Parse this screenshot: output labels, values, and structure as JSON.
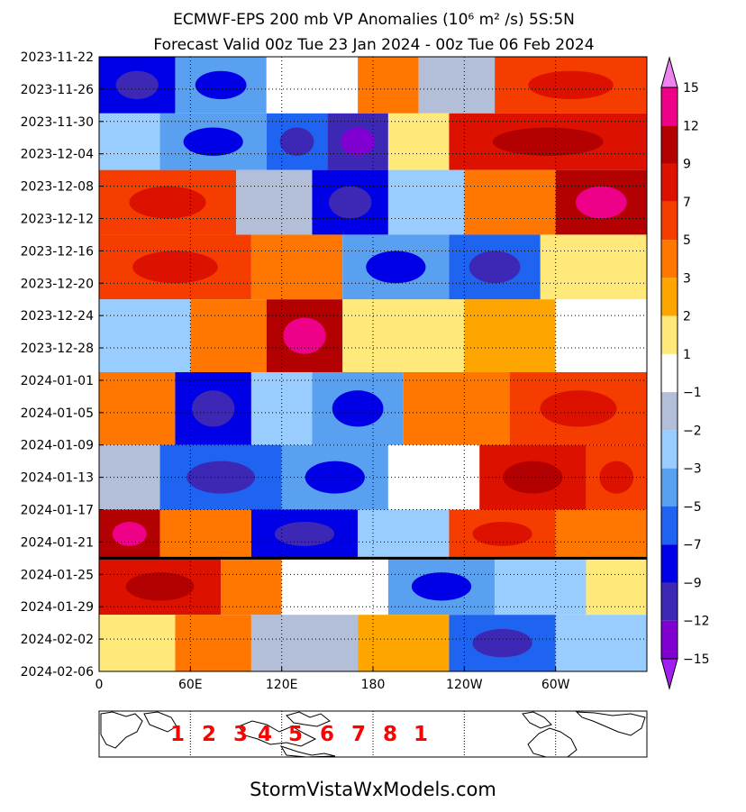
{
  "title_line1": "ECMWF-EPS 200 mb VP Anomalies (10⁶ m² /s) 5S:5N",
  "title_line2": "Forecast Valid 00z Tue 23 Jan 2024 - 00z Tue 06 Feb 2024",
  "footer": "StormVistaWxModels.com",
  "chart_data": {
    "type": "heatmap",
    "description_free": true,
    "x_axis": {
      "tick_labels": [
        "0",
        "60E",
        "120E",
        "180",
        "120W",
        "60W"
      ],
      "tick_lon": [
        0,
        60,
        120,
        180,
        240,
        300
      ],
      "range": [
        0,
        360
      ]
    },
    "y_axis": {
      "tick_labels": [
        "2023-11-22",
        "2023-11-26",
        "2023-11-30",
        "2023-12-04",
        "2023-12-08",
        "2023-12-12",
        "2023-12-16",
        "2023-12-20",
        "2023-12-24",
        "2023-12-28",
        "2024-01-01",
        "2024-01-05",
        "2024-01-09",
        "2024-01-13",
        "2024-01-17",
        "2024-01-21",
        "2024-01-25",
        "2024-01-29",
        "2024-02-02",
        "2024-02-06"
      ],
      "range": [
        "2023-11-22",
        "2024-02-06"
      ]
    },
    "forecast_start_line": "2024-01-23",
    "colorbar": {
      "labels": [
        "15",
        "12",
        "9",
        "7",
        "5",
        "3",
        "2",
        "1",
        "−1",
        "−2",
        "−3",
        "−5",
        "−7",
        "−9",
        "−12",
        "−15"
      ],
      "levels": [
        15,
        12,
        9,
        7,
        5,
        3,
        2,
        1,
        -1,
        -2,
        -3,
        -5,
        -7,
        -9,
        -12,
        -15
      ],
      "colors": [
        "#ee82ee",
        "#ee0088",
        "#b30000",
        "#dd1100",
        "#f53d00",
        "#ff7700",
        "#ffa500",
        "#ffe97a",
        "#ffffff",
        "#b3bfd9",
        "#99ccff",
        "#5aa0f0",
        "#1e64f0",
        "#0000e6",
        "#3c28b4",
        "#8000d2",
        "#a020f0"
      ]
    },
    "mjo_phases": [
      "1",
      "2",
      "3",
      "4",
      "5",
      "6",
      "7",
      "8",
      "1"
    ],
    "anomaly_bands": [
      {
        "y0": "2023-11-22",
        "y1": "2023-11-29",
        "lon": [
          [
            0,
            50,
            -9
          ],
          [
            50,
            110,
            -5
          ],
          [
            110,
            170,
            -1
          ],
          [
            170,
            210,
            3
          ],
          [
            210,
            260,
            -2
          ],
          [
            260,
            360,
            5
          ]
        ]
      },
      {
        "y0": "2023-11-29",
        "y1": "2023-12-06",
        "lon": [
          [
            0,
            40,
            -3
          ],
          [
            40,
            110,
            -5
          ],
          [
            110,
            150,
            -7
          ],
          [
            150,
            190,
            -12
          ],
          [
            190,
            230,
            1
          ],
          [
            230,
            360,
            7
          ]
        ]
      },
      {
        "y0": "2023-12-06",
        "y1": "2023-12-14",
        "lon": [
          [
            0,
            90,
            5
          ],
          [
            90,
            140,
            -2
          ],
          [
            140,
            190,
            -9
          ],
          [
            190,
            240,
            -3
          ],
          [
            240,
            300,
            3
          ],
          [
            300,
            360,
            9
          ]
        ]
      },
      {
        "y0": "2023-12-14",
        "y1": "2023-12-22",
        "lon": [
          [
            0,
            100,
            5
          ],
          [
            100,
            160,
            3
          ],
          [
            160,
            230,
            -5
          ],
          [
            230,
            290,
            -7
          ],
          [
            290,
            360,
            1
          ]
        ]
      },
      {
        "y0": "2023-12-22",
        "y1": "2023-12-31",
        "lon": [
          [
            0,
            60,
            -3
          ],
          [
            60,
            110,
            3
          ],
          [
            110,
            160,
            9
          ],
          [
            160,
            240,
            1
          ],
          [
            240,
            300,
            2
          ],
          [
            300,
            360,
            -1
          ]
        ]
      },
      {
        "y0": "2023-12-31",
        "y1": "2024-01-09",
        "lon": [
          [
            0,
            50,
            3
          ],
          [
            50,
            100,
            -9
          ],
          [
            100,
            140,
            -3
          ],
          [
            140,
            200,
            -5
          ],
          [
            200,
            270,
            3
          ],
          [
            270,
            360,
            5
          ]
        ]
      },
      {
        "y0": "2024-01-09",
        "y1": "2024-01-17",
        "lon": [
          [
            0,
            40,
            -2
          ],
          [
            40,
            120,
            -7
          ],
          [
            120,
            190,
            -5
          ],
          [
            190,
            250,
            -1
          ],
          [
            250,
            320,
            7
          ],
          [
            320,
            360,
            5
          ]
        ]
      },
      {
        "y0": "2024-01-17",
        "y1": "2024-01-23",
        "lon": [
          [
            0,
            40,
            9
          ],
          [
            40,
            100,
            3
          ],
          [
            100,
            170,
            -9
          ],
          [
            170,
            230,
            -3
          ],
          [
            230,
            300,
            5
          ],
          [
            300,
            360,
            3
          ]
        ]
      },
      {
        "y0": "2024-01-23",
        "y1": "2024-01-30",
        "lon": [
          [
            0,
            80,
            7
          ],
          [
            80,
            120,
            3
          ],
          [
            120,
            190,
            -1
          ],
          [
            190,
            260,
            -5
          ],
          [
            260,
            320,
            -3
          ],
          [
            320,
            360,
            1
          ]
        ]
      },
      {
        "y0": "2024-01-30",
        "y1": "2024-02-06",
        "lon": [
          [
            0,
            50,
            1
          ],
          [
            50,
            100,
            3
          ],
          [
            100,
            170,
            -2
          ],
          [
            170,
            230,
            2
          ],
          [
            230,
            300,
            -7
          ],
          [
            300,
            360,
            -3
          ]
        ]
      }
    ]
  }
}
